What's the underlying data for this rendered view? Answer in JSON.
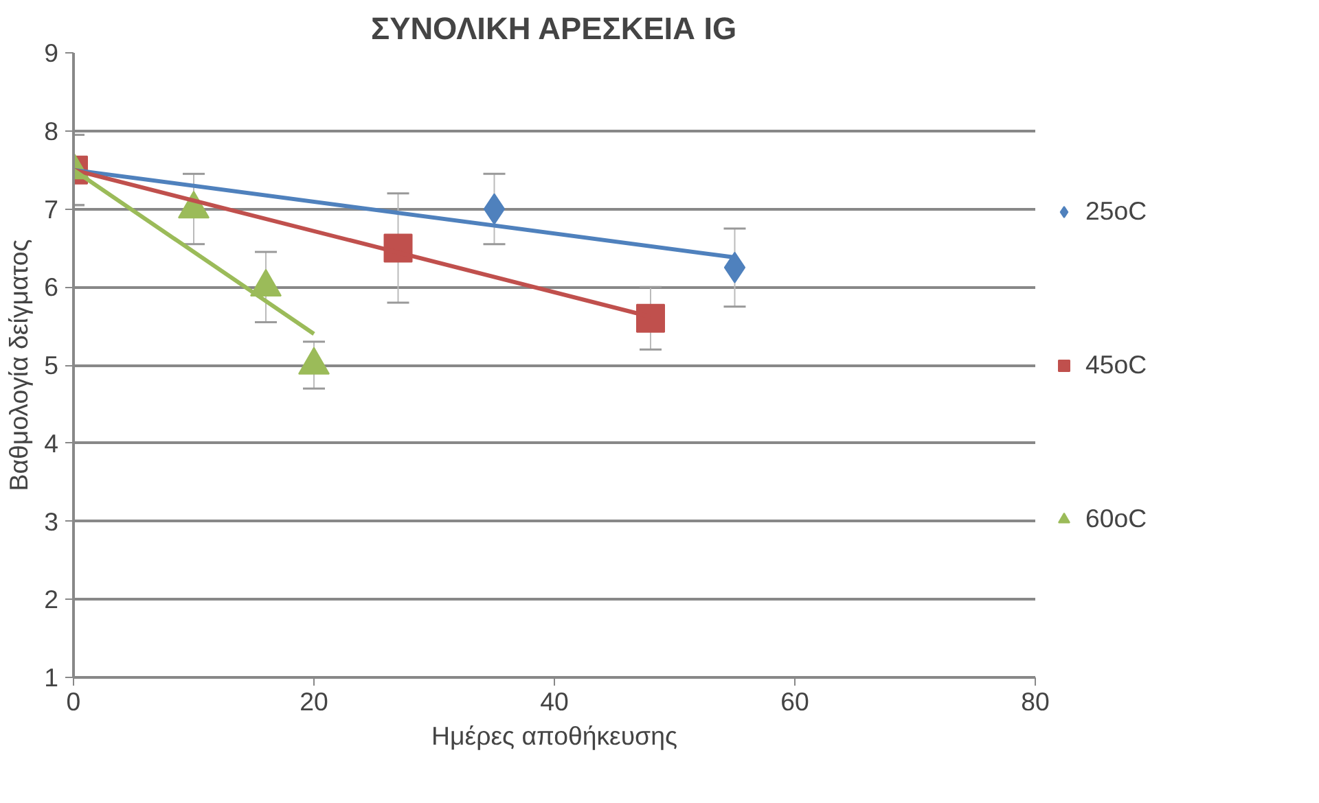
{
  "chart_data": {
    "type": "scatter",
    "title": "ΣΥΝΟΛΙΚΗ ΑΡΕΣΚΕΙΑ IG",
    "xlabel": "Ημέρες αποθήκευσης",
    "ylabel": "Βαθμολογία δείγματος",
    "xlim": [
      0,
      80
    ],
    "xticks": [
      0,
      20,
      40,
      60,
      80
    ],
    "ylim": [
      1,
      9
    ],
    "yticks": [
      1,
      2,
      3,
      4,
      5,
      6,
      7,
      8,
      9
    ],
    "grid": "y",
    "legend": "right",
    "series": [
      {
        "name": "25oC",
        "color": "#4f81bd",
        "marker": "diamond",
        "x": [
          35,
          55
        ],
        "values": [
          7.0,
          6.25
        ],
        "errors": [
          0.45,
          0.5
        ]
      },
      {
        "name": "45oC",
        "color": "#c0504d",
        "marker": "square",
        "x": [
          0,
          27,
          48
        ],
        "values": [
          7.5,
          6.5,
          5.6
        ],
        "errors": [
          0.45,
          0.7,
          0.4
        ]
      },
      {
        "name": "60oC",
        "color": "#9bbb59",
        "marker": "triangle",
        "x": [
          0,
          10,
          16,
          20
        ],
        "values": [
          7.5,
          7.0,
          6.0,
          5.0
        ],
        "errors": [
          0.45,
          0.45,
          0.45,
          0.3
        ]
      },
      {
        "type": "line",
        "color": "#4f81bd",
        "x": [
          0,
          55
        ],
        "values": [
          7.5,
          6.38
        ]
      },
      {
        "type": "line",
        "color": "#c0504d",
        "x": [
          0,
          48
        ],
        "values": [
          7.5,
          5.62
        ]
      },
      {
        "type": "line",
        "color": "#9bbb59",
        "x": [
          0,
          20
        ],
        "values": [
          7.5,
          5.4
        ]
      }
    ]
  }
}
